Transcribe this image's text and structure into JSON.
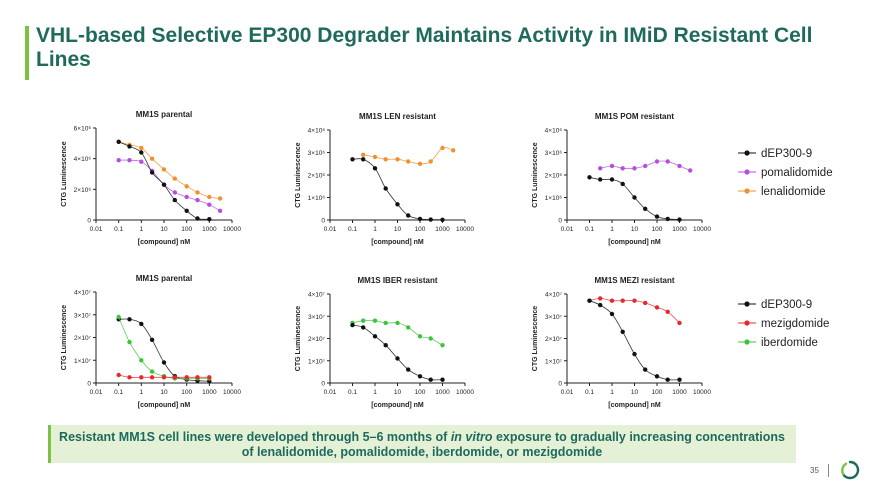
{
  "title": "VHL-based Selective EP300 Degrader Maintains Activity in IMiD Resistant Cell Lines",
  "banner": {
    "text_1": "Resistant MM1S cell lines were developed through 5–6 months of ",
    "text_italic": "in vitro",
    "text_2": " exposure to gradually increasing concentrations of lenalidomide, pomalidomide, iberdomide, or mezigdomide"
  },
  "page_number": "35",
  "colors": {
    "dEP300-9": "#111111",
    "pomalidomide": "#b44fe0",
    "lenalidomide": "#f0912e",
    "mezigdomide": "#e8282a",
    "iberdomide": "#3cc43c",
    "title": "#1e6a5c",
    "accent": "#7bc143"
  },
  "legends": [
    {
      "items": [
        {
          "label": "dEP300-9",
          "series": "dEP300-9"
        },
        {
          "label": "pomalidomide",
          "series": "pomalidomide"
        },
        {
          "label": "lenalidomide",
          "series": "lenalidomide"
        }
      ]
    },
    {
      "items": [
        {
          "label": "dEP300-9",
          "series": "dEP300-9"
        },
        {
          "label": "mezigdomide",
          "series": "mezigdomide"
        },
        {
          "label": "iberdomide",
          "series": "iberdomide"
        }
      ]
    }
  ],
  "chart_data": [
    {
      "type": "scatter",
      "title": "MM1S parental",
      "xlabel": "[compound] nM",
      "ylabel": "CTG Luminescence",
      "xscale": "log",
      "xlim": [
        0.01,
        10000
      ],
      "ylim": [
        0,
        6000000
      ],
      "x_ticks": [
        "0.01",
        "0.1",
        "1",
        "10",
        "100",
        "1000",
        "10000"
      ],
      "y_ticks": [
        {
          "value": 0,
          "label": "0"
        },
        {
          "value": 2000000,
          "label": "2×10⁶"
        },
        {
          "value": 4000000,
          "label": "4×10⁶"
        },
        {
          "value": 6000000,
          "label": "6×10⁶"
        }
      ],
      "series": [
        {
          "name": "lenalidomide",
          "x": [
            0.1,
            0.3,
            1,
            3,
            10,
            30,
            100,
            300,
            1000,
            3000
          ],
          "y": [
            5100000,
            4900000,
            4700000,
            4000000,
            3300000,
            2700000,
            2200000,
            1800000,
            1500000,
            1400000
          ]
        },
        {
          "name": "pomalidomide",
          "x": [
            0.1,
            0.3,
            1,
            3,
            10,
            30,
            100,
            300,
            1000,
            3000
          ],
          "y": [
            3900000,
            3900000,
            3800000,
            3200000,
            2300000,
            1800000,
            1500000,
            1300000,
            1000000,
            600000
          ]
        },
        {
          "name": "dEP300-9",
          "x": [
            0.1,
            0.3,
            1,
            3,
            10,
            30,
            100,
            300,
            1000
          ],
          "y": [
            5100000,
            4800000,
            4400000,
            3100000,
            2300000,
            1300000,
            600000,
            100000,
            50000
          ]
        }
      ]
    },
    {
      "type": "scatter",
      "title": "MM1S LEN resistant",
      "xlabel": "[compound] nM",
      "ylabel": "CTG Luminescence",
      "xscale": "log",
      "xlim": [
        0.01,
        10000
      ],
      "ylim": [
        0,
        4000000
      ],
      "x_ticks": [
        "0.01",
        "0.1",
        "1",
        "10",
        "100",
        "1000",
        "10000"
      ],
      "y_ticks": [
        {
          "value": 0,
          "label": "0"
        },
        {
          "value": 1000000,
          "label": "1×10⁶"
        },
        {
          "value": 2000000,
          "label": "2×10⁶"
        },
        {
          "value": 3000000,
          "label": "3×10⁶"
        },
        {
          "value": 4000000,
          "label": "4×10⁶"
        }
      ],
      "series": [
        {
          "name": "lenalidomide",
          "x": [
            0.3,
            1,
            3,
            10,
            30,
            100,
            300,
            1000,
            3000
          ],
          "y": [
            2900000,
            2800000,
            2700000,
            2700000,
            2600000,
            2500000,
            2600000,
            3200000,
            3100000
          ]
        },
        {
          "name": "dEP300-9",
          "x": [
            0.1,
            0.3,
            1,
            3,
            10,
            30,
            100,
            300,
            1000
          ],
          "y": [
            2700000,
            2700000,
            2300000,
            1400000,
            700000,
            200000,
            50000,
            20000,
            10000
          ]
        }
      ]
    },
    {
      "type": "scatter",
      "title": "MM1S POM resistant",
      "xlabel": "[compound] nM",
      "ylabel": "CTG Luminescence",
      "xscale": "log",
      "xlim": [
        0.01,
        10000
      ],
      "ylim": [
        0,
        4000000
      ],
      "x_ticks": [
        "0.01",
        "0.1",
        "1",
        "10",
        "100",
        "1000",
        "10000"
      ],
      "y_ticks": [
        {
          "value": 0,
          "label": "0"
        },
        {
          "value": 1000000,
          "label": "1×10⁶"
        },
        {
          "value": 2000000,
          "label": "2×10⁶"
        },
        {
          "value": 3000000,
          "label": "3×10⁶"
        },
        {
          "value": 4000000,
          "label": "4×10⁶"
        }
      ],
      "series": [
        {
          "name": "pomalidomide",
          "x": [
            0.3,
            1,
            3,
            10,
            30,
            100,
            300,
            1000,
            3000
          ],
          "y": [
            2300000,
            2400000,
            2300000,
            2300000,
            2400000,
            2600000,
            2600000,
            2400000,
            2200000
          ]
        },
        {
          "name": "dEP300-9",
          "x": [
            0.1,
            0.3,
            1,
            3,
            10,
            30,
            100,
            300,
            1000
          ],
          "y": [
            1900000,
            1800000,
            1800000,
            1600000,
            1000000,
            500000,
            150000,
            50000,
            20000
          ]
        }
      ]
    },
    {
      "type": "scatter",
      "title": "MM1S parental",
      "xlabel": "[compound] nM",
      "ylabel": "CTG Luminescence",
      "xscale": "log",
      "xlim": [
        0.01,
        10000
      ],
      "ylim": [
        0,
        40000000
      ],
      "x_ticks": [
        "0.01",
        "0.1",
        "1",
        "10",
        "100",
        "1000",
        "10000"
      ],
      "y_ticks": [
        {
          "value": 0,
          "label": "0"
        },
        {
          "value": 10000000,
          "label": "1×10⁷"
        },
        {
          "value": 20000000,
          "label": "2×10⁷"
        },
        {
          "value": 30000000,
          "label": "3×10⁷"
        },
        {
          "value": 40000000,
          "label": "4×10⁷"
        }
      ],
      "series": [
        {
          "name": "dEP300-9",
          "x": [
            0.1,
            0.3,
            1,
            3,
            10,
            30,
            100,
            300,
            1000
          ],
          "y": [
            28000000,
            28000000,
            26000000,
            19000000,
            9000000,
            3000000,
            1500000,
            1000000,
            800000
          ]
        },
        {
          "name": "iberdomide",
          "x": [
            0.1,
            0.3,
            1,
            3,
            10,
            30,
            100,
            300,
            1000
          ],
          "y": [
            29000000,
            18000000,
            10000000,
            5000000,
            3000000,
            2000000,
            2000000,
            2000000,
            2000000
          ]
        },
        {
          "name": "mezigdomide",
          "x": [
            0.1,
            0.3,
            1,
            3,
            10,
            30,
            100,
            300,
            1000
          ],
          "y": [
            3500000,
            2500000,
            2500000,
            2500000,
            2500000,
            2500000,
            2500000,
            2500000,
            2500000
          ]
        }
      ]
    },
    {
      "type": "scatter",
      "title": "MM1S IBER resistant",
      "xlabel": "[compound] nM",
      "ylabel": "CTG Luminescence",
      "xscale": "log",
      "xlim": [
        0.01,
        10000
      ],
      "ylim": [
        0,
        40000000
      ],
      "x_ticks": [
        "0.01",
        "0.1",
        "1",
        "10",
        "100",
        "1000",
        "10000"
      ],
      "y_ticks": [
        {
          "value": 0,
          "label": "0"
        },
        {
          "value": 10000000,
          "label": "1×10⁷"
        },
        {
          "value": 20000000,
          "label": "2×10⁷"
        },
        {
          "value": 30000000,
          "label": "3×10⁷"
        },
        {
          "value": 40000000,
          "label": "4×10⁷"
        }
      ],
      "series": [
        {
          "name": "iberdomide",
          "x": [
            0.1,
            0.3,
            1,
            3,
            10,
            30,
            100,
            300,
            1000
          ],
          "y": [
            27000000,
            28000000,
            28000000,
            27000000,
            27000000,
            25000000,
            21000000,
            20000000,
            17000000
          ]
        },
        {
          "name": "dEP300-9",
          "x": [
            0.1,
            0.3,
            1,
            3,
            10,
            30,
            100,
            300,
            1000
          ],
          "y": [
            26000000,
            25000000,
            21000000,
            17000000,
            11000000,
            6000000,
            3000000,
            1500000,
            1500000
          ]
        }
      ]
    },
    {
      "type": "scatter",
      "title": "MM1S MEZI resistant",
      "xlabel": "[compound] nM",
      "ylabel": "CTG Luminescence",
      "xscale": "log",
      "xlim": [
        0.01,
        10000
      ],
      "ylim": [
        0,
        40000000
      ],
      "x_ticks": [
        "0.01",
        "0.1",
        "1",
        "10",
        "100",
        "1000",
        "10000"
      ],
      "y_ticks": [
        {
          "value": 0,
          "label": "0"
        },
        {
          "value": 10000000,
          "label": "1×10⁷"
        },
        {
          "value": 20000000,
          "label": "2×10⁷"
        },
        {
          "value": 30000000,
          "label": "3×10⁷"
        },
        {
          "value": 40000000,
          "label": "4×10⁷"
        }
      ],
      "series": [
        {
          "name": "mezigdomide",
          "x": [
            0.1,
            0.3,
            1,
            3,
            10,
            30,
            100,
            300,
            1000
          ],
          "y": [
            37000000,
            38000000,
            37000000,
            37000000,
            37000000,
            36000000,
            34000000,
            32000000,
            27000000
          ]
        },
        {
          "name": "dEP300-9",
          "x": [
            0.1,
            0.3,
            1,
            3,
            10,
            30,
            100,
            300,
            1000
          ],
          "y": [
            37000000,
            35000000,
            31000000,
            23000000,
            13000000,
            6000000,
            3000000,
            1500000,
            1500000
          ]
        }
      ]
    }
  ]
}
